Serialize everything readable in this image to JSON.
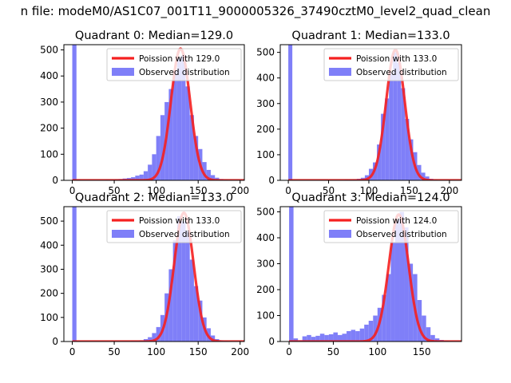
{
  "figure_title": "n file: modeM0/AS1C07_001T11_9000005326_37490cztM0_level2_quad_clean",
  "chart_data": [
    {
      "type": "bar",
      "title": "Quadrant 0: Median=129.0",
      "xlim": [
        -10,
        205
      ],
      "ylim": [
        0,
        520
      ],
      "xticks": [
        0,
        50,
        100,
        150,
        200
      ],
      "yticks": [
        0,
        100,
        200,
        300,
        400,
        500
      ],
      "legend_position": "top-right",
      "legend": [
        "Poission with 129.0",
        "Observed distribution"
      ],
      "hist_edges": [
        0,
        5,
        10,
        15,
        20,
        25,
        30,
        35,
        40,
        45,
        50,
        55,
        60,
        65,
        70,
        75,
        80,
        85,
        90,
        95,
        100,
        105,
        110,
        115,
        120,
        125,
        130,
        135,
        140,
        145,
        150,
        155,
        160,
        165,
        170,
        175,
        180,
        185,
        190,
        195
      ],
      "hist_counts": [
        520,
        3,
        2,
        2,
        2,
        2,
        2,
        2,
        3,
        3,
        4,
        5,
        7,
        9,
        12,
        18,
        22,
        35,
        60,
        100,
        170,
        250,
        300,
        350,
        420,
        470,
        480,
        360,
        250,
        170,
        120,
        70,
        40,
        20,
        10,
        5,
        3,
        2,
        1
      ],
      "poisson_mean": 129.0,
      "poisson_peak": 505
    },
    {
      "type": "bar",
      "title": "Quadrant 1: Median=133.0",
      "xlim": [
        -10,
        215
      ],
      "ylim": [
        0,
        530
      ],
      "xticks": [
        0,
        50,
        100,
        150,
        200
      ],
      "yticks": [
        0,
        100,
        200,
        300,
        400,
        500
      ],
      "legend_position": "top-right",
      "legend": [
        "Poission with 133.0",
        "Observed distribution"
      ],
      "hist_edges": [
        0,
        5,
        10,
        15,
        20,
        25,
        30,
        35,
        40,
        45,
        50,
        55,
        60,
        65,
        70,
        75,
        80,
        85,
        90,
        95,
        100,
        105,
        110,
        115,
        120,
        125,
        130,
        135,
        140,
        145,
        150,
        155,
        160,
        165,
        170,
        175,
        180,
        185,
        190,
        195,
        200
      ],
      "hist_counts": [
        530,
        2,
        1,
        1,
        1,
        1,
        1,
        1,
        1,
        1,
        1,
        1,
        2,
        2,
        3,
        3,
        4,
        6,
        10,
        20,
        45,
        70,
        140,
        260,
        320,
        420,
        500,
        460,
        360,
        240,
        160,
        110,
        60,
        30,
        15,
        6,
        3,
        2,
        1,
        1
      ],
      "poisson_mean": 133.0,
      "poisson_peak": 510
    },
    {
      "type": "bar",
      "title": "Quadrant 2: Median=133.0",
      "xlim": [
        -10,
        205
      ],
      "ylim": [
        0,
        560
      ],
      "xticks": [
        0,
        50,
        100,
        150,
        200
      ],
      "yticks": [
        0,
        100,
        200,
        300,
        400,
        500
      ],
      "legend_position": "top-right",
      "legend": [
        "Poission with 133.0",
        "Observed distribution"
      ],
      "hist_edges": [
        0,
        5,
        10,
        15,
        20,
        25,
        30,
        35,
        40,
        45,
        50,
        55,
        60,
        65,
        70,
        75,
        80,
        85,
        90,
        95,
        100,
        105,
        110,
        115,
        120,
        125,
        130,
        135,
        140,
        145,
        150,
        155,
        160,
        165,
        170,
        175,
        180,
        185,
        190,
        195
      ],
      "hist_counts": [
        560,
        2,
        1,
        1,
        1,
        1,
        1,
        1,
        1,
        1,
        1,
        1,
        2,
        2,
        3,
        3,
        5,
        10,
        18,
        35,
        60,
        110,
        200,
        300,
        420,
        520,
        500,
        460,
        340,
        230,
        170,
        100,
        55,
        25,
        10,
        5,
        3,
        2,
        1
      ],
      "poisson_mean": 133.0,
      "poisson_peak": 535
    },
    {
      "type": "bar",
      "title": "Quadrant 3: Median=124.0",
      "xlim": [
        -10,
        195
      ],
      "ylim": [
        0,
        520
      ],
      "xticks": [
        0,
        50,
        100,
        150
      ],
      "yticks": [
        0,
        100,
        200,
        300,
        400,
        500
      ],
      "legend_position": "top-right",
      "legend": [
        "Poission with 124.0",
        "Observed distribution"
      ],
      "hist_edges": [
        0,
        5,
        10,
        15,
        20,
        25,
        30,
        35,
        40,
        45,
        50,
        55,
        60,
        65,
        70,
        75,
        80,
        85,
        90,
        95,
        100,
        105,
        110,
        115,
        120,
        125,
        130,
        135,
        140,
        145,
        150,
        155,
        160,
        165,
        170,
        175,
        180,
        185
      ],
      "hist_counts": [
        520,
        12,
        5,
        20,
        25,
        18,
        22,
        30,
        25,
        28,
        35,
        25,
        30,
        40,
        45,
        40,
        50,
        65,
        80,
        100,
        130,
        180,
        260,
        380,
        470,
        500,
        440,
        300,
        260,
        160,
        100,
        55,
        25,
        12,
        6,
        3,
        2,
        1
      ],
      "poisson_mean": 124.0,
      "poisson_peak": 490
    }
  ]
}
